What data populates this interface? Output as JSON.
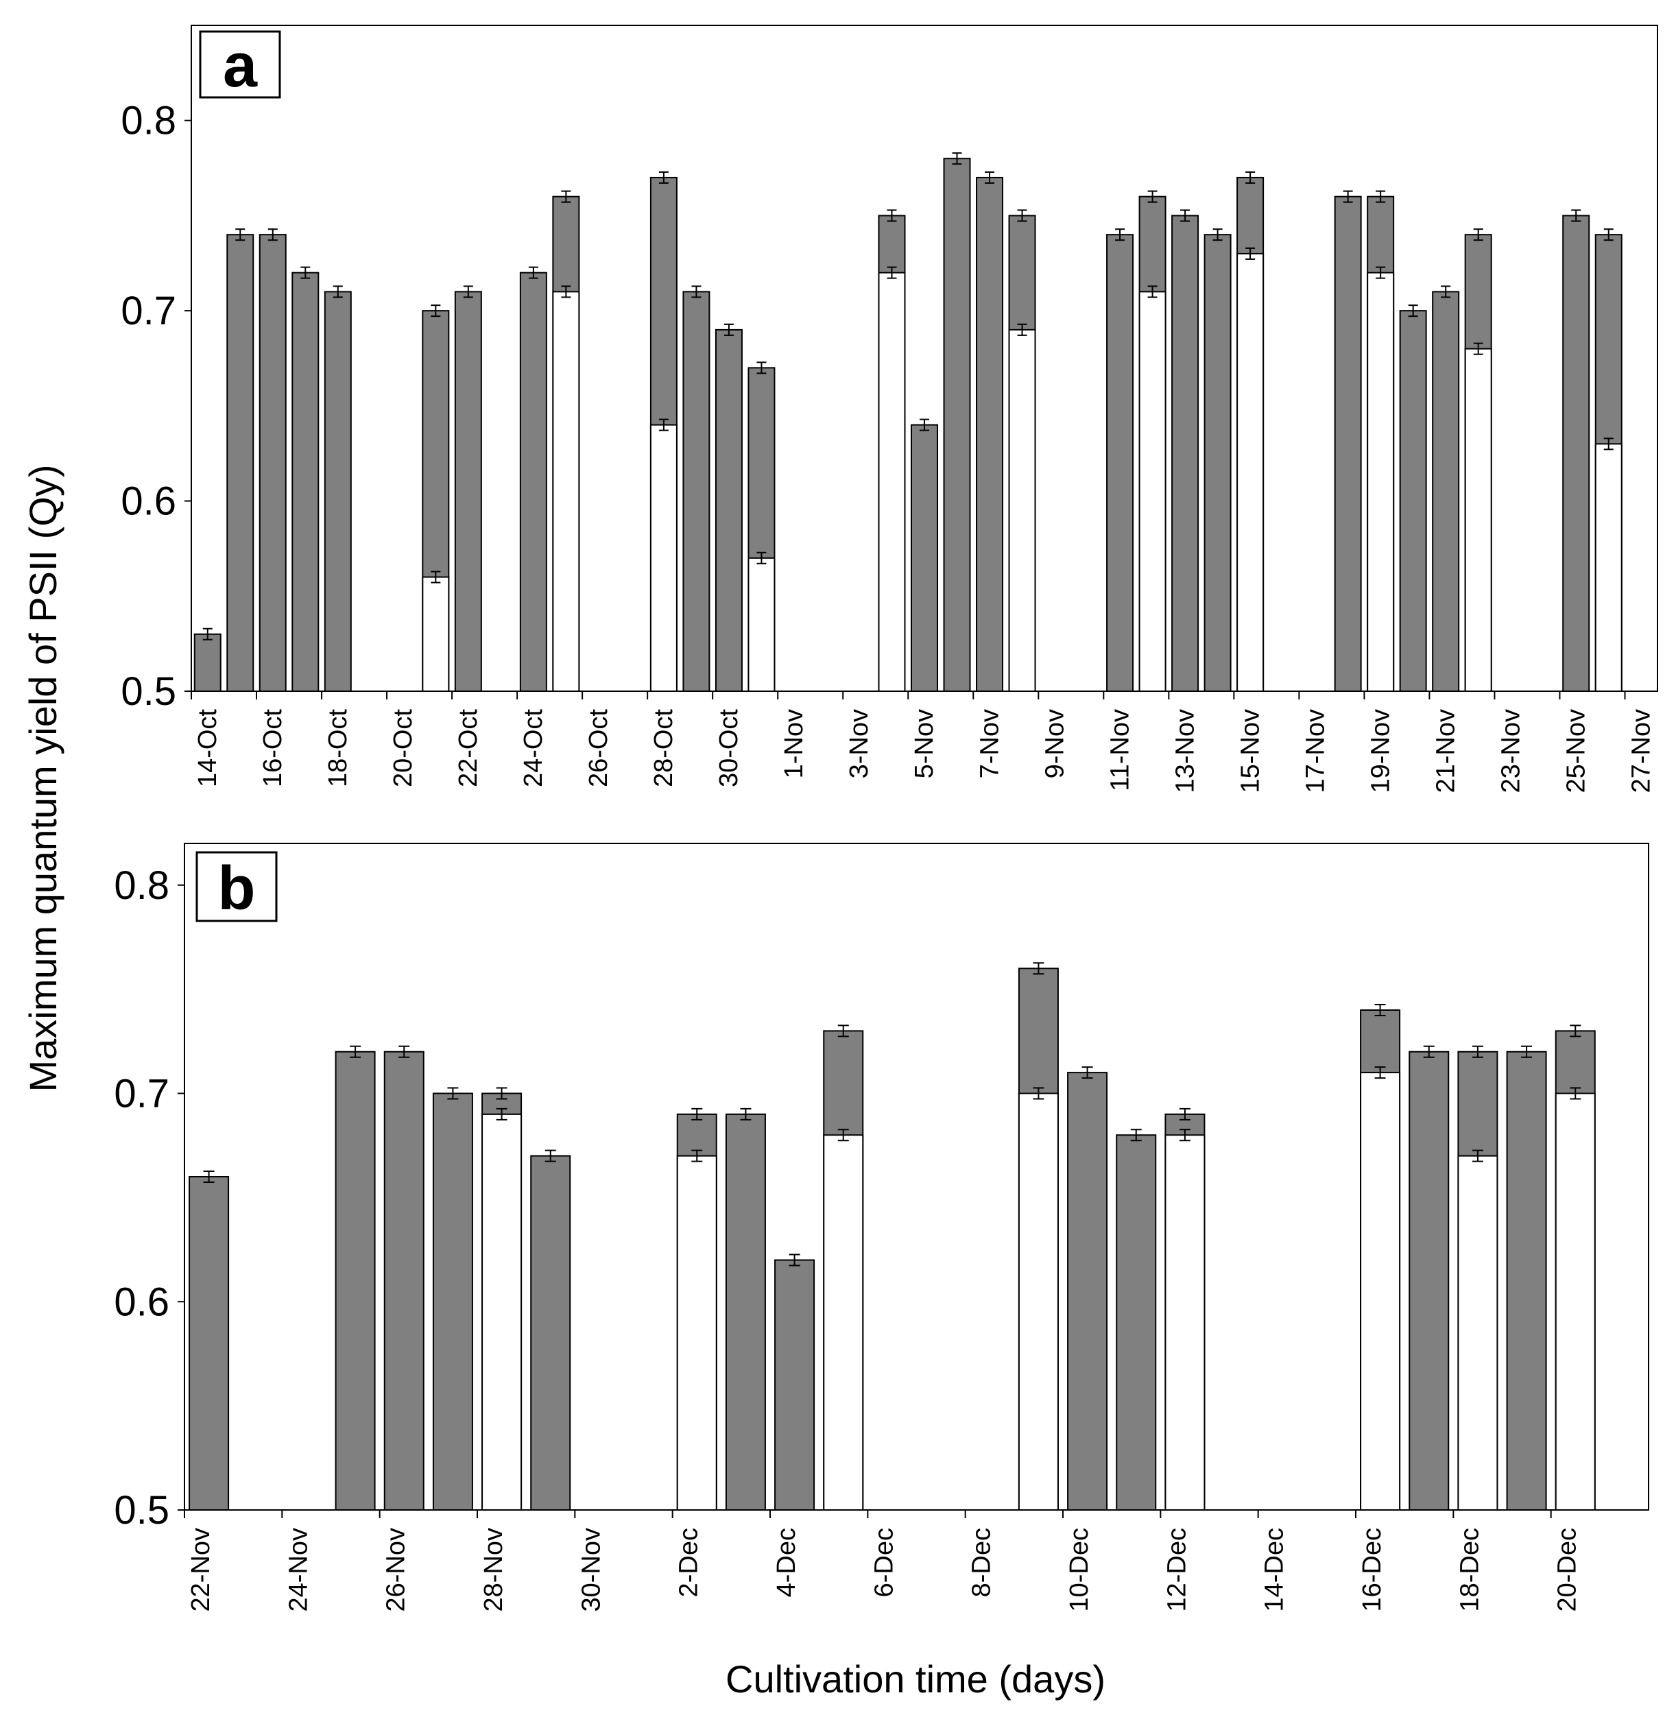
{
  "figure": {
    "ylabel": "Maximum quantum yield of PSII (Qy)",
    "xlabel": "Cultivation time (days)"
  },
  "colors": {
    "dark_bar": "#808080",
    "light_bar": "#ffffff",
    "stroke": "#000000"
  },
  "chart_data": [
    {
      "panel": "a",
      "type": "bar",
      "ylim": [
        0.5,
        0.85
      ],
      "yticks": [
        "0.5",
        "0.6",
        "0.7",
        "0.8"
      ],
      "xtick_labels": [
        "14-Oct",
        "16-Oct",
        "18-Oct",
        "20-Oct",
        "22-Oct",
        "24-Oct",
        "26-Oct",
        "28-Oct",
        "30-Oct",
        "1-Nov",
        "3-Nov",
        "5-Nov",
        "7-Nov",
        "9-Nov",
        "11-Nov",
        "13-Nov",
        "15-Nov",
        "17-Nov",
        "19-Nov",
        "21-Nov",
        "23-Nov",
        "25-Nov",
        "27-Nov"
      ],
      "days": 45,
      "series": [
        {
          "name": "dark",
          "color": "#808080",
          "points": [
            [
              0,
              0.53
            ],
            [
              1,
              0.74
            ],
            [
              2,
              0.74
            ],
            [
              3,
              0.72
            ],
            [
              4,
              0.71
            ],
            [
              7,
              0.7
            ],
            [
              8,
              0.71
            ],
            [
              10,
              0.72
            ],
            [
              11,
              0.76
            ],
            [
              14,
              0.77
            ],
            [
              15,
              0.71
            ],
            [
              16,
              0.69
            ],
            [
              17,
              0.67
            ],
            [
              21,
              0.75
            ],
            [
              22,
              0.64
            ],
            [
              23,
              0.78
            ],
            [
              24,
              0.77
            ],
            [
              25,
              0.75
            ],
            [
              28,
              0.74
            ],
            [
              29,
              0.76
            ],
            [
              30,
              0.75
            ],
            [
              31,
              0.74
            ],
            [
              32,
              0.77
            ],
            [
              35,
              0.76
            ],
            [
              36,
              0.76
            ],
            [
              37,
              0.7
            ],
            [
              38,
              0.71
            ],
            [
              39,
              0.74
            ],
            [
              42,
              0.75
            ],
            [
              43,
              0.74
            ]
          ]
        },
        {
          "name": "light",
          "color": "#ffffff",
          "points": [
            [
              7,
              0.56
            ],
            [
              11,
              0.71
            ],
            [
              14,
              0.64
            ],
            [
              17,
              0.57
            ],
            [
              21,
              0.72
            ],
            [
              25,
              0.69
            ],
            [
              29,
              0.71
            ],
            [
              32,
              0.73
            ],
            [
              36,
              0.72
            ],
            [
              39,
              0.68
            ],
            [
              43,
              0.63
            ]
          ]
        }
      ]
    },
    {
      "panel": "b",
      "type": "bar",
      "ylim": [
        0.5,
        0.82
      ],
      "yticks": [
        "0.5",
        "0.6",
        "0.7",
        "0.8"
      ],
      "xtick_labels": [
        "22-Nov",
        "24-Nov",
        "26-Nov",
        "28-Nov",
        "30-Nov",
        "2-Dec",
        "4-Dec",
        "6-Dec",
        "8-Dec",
        "10-Dec",
        "12-Dec",
        "14-Dec",
        "16-Dec",
        "18-Dec",
        "20-Dec"
      ],
      "days": 30,
      "series": [
        {
          "name": "dark",
          "color": "#808080",
          "points": [
            [
              0,
              0.66
            ],
            [
              3,
              0.72
            ],
            [
              4,
              0.72
            ],
            [
              5,
              0.7
            ],
            [
              6,
              0.7
            ],
            [
              7,
              0.67
            ],
            [
              10,
              0.69
            ],
            [
              11,
              0.69
            ],
            [
              12,
              0.62
            ],
            [
              13,
              0.73
            ],
            [
              17,
              0.76
            ],
            [
              18,
              0.71
            ],
            [
              19,
              0.68
            ],
            [
              20,
              0.69
            ],
            [
              24,
              0.74
            ],
            [
              25,
              0.72
            ],
            [
              26,
              0.72
            ],
            [
              27,
              0.72
            ],
            [
              28,
              0.73
            ]
          ]
        },
        {
          "name": "light",
          "color": "#ffffff",
          "points": [
            [
              6,
              0.69
            ],
            [
              10,
              0.67
            ],
            [
              13,
              0.68
            ],
            [
              17,
              0.7
            ],
            [
              20,
              0.68
            ],
            [
              24,
              0.71
            ],
            [
              26,
              0.67
            ],
            [
              28,
              0.7
            ]
          ]
        }
      ]
    }
  ]
}
